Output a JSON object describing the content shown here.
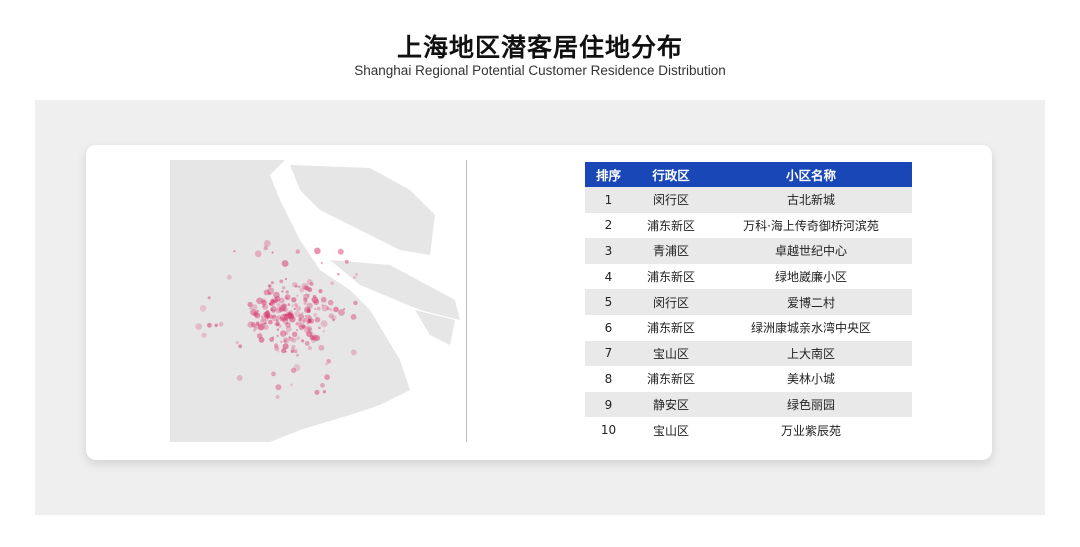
{
  "title": "上海地区潜客居住地分布",
  "subtitle": "Shanghai Regional Potential Customer Residence Distribution",
  "colors": {
    "header": "#1a47b8",
    "heat": "#d6336c",
    "land": "#e6e6e6"
  },
  "table": {
    "headers": [
      "排序",
      "行政区",
      "小区名称"
    ],
    "rows": [
      {
        "rank": "1",
        "district": "闵行区",
        "community": "古北新城"
      },
      {
        "rank": "2",
        "district": "浦东新区",
        "community": "万科·海上传奇御桥河滨苑"
      },
      {
        "rank": "3",
        "district": "青浦区",
        "community": "卓越世纪中心"
      },
      {
        "rank": "4",
        "district": "浦东新区",
        "community": "绿地崴廉小区"
      },
      {
        "rank": "5",
        "district": "闵行区",
        "community": "爱博二村"
      },
      {
        "rank": "6",
        "district": "浦东新区",
        "community": "绿洲康城亲水湾中央区"
      },
      {
        "rank": "7",
        "district": "宝山区",
        "community": "上大南区"
      },
      {
        "rank": "8",
        "district": "浦东新区",
        "community": "美林小城"
      },
      {
        "rank": "9",
        "district": "静安区",
        "community": "绿色丽园"
      },
      {
        "rank": "10",
        "district": "宝山区",
        "community": "万业紫辰苑"
      }
    ]
  }
}
